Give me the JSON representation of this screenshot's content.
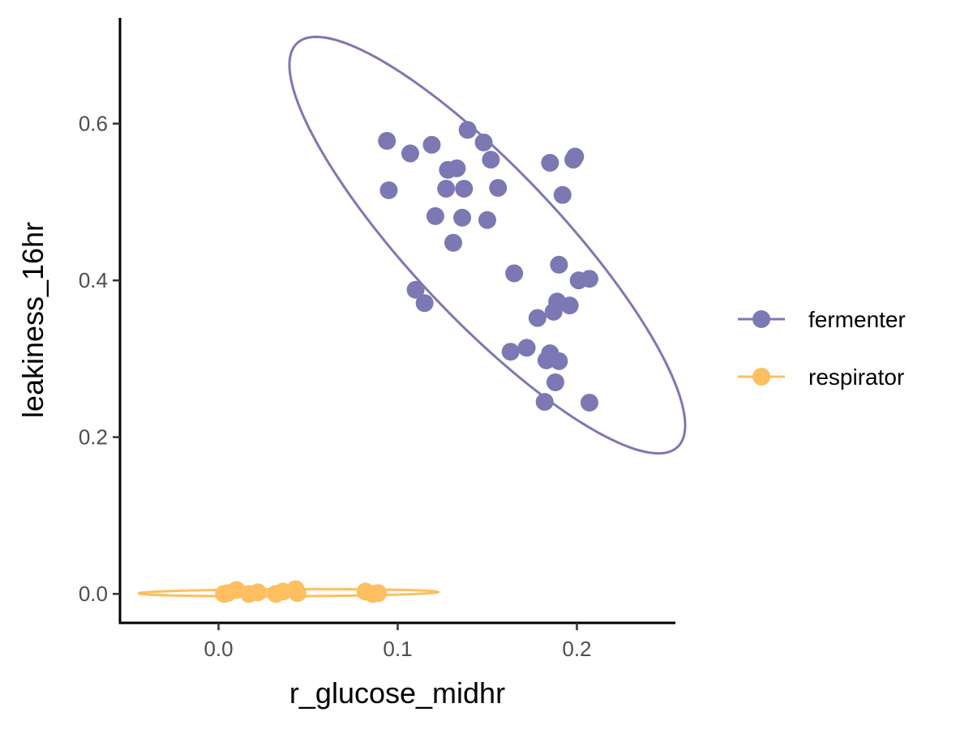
{
  "chart_data": {
    "type": "scatter",
    "xlabel": "r_glucose_midhr",
    "ylabel": "leakiness_16hr",
    "xlim": [
      -0.055,
      0.255
    ],
    "ylim": [
      -0.037,
      0.735
    ],
    "x_ticks": [
      0.0,
      0.1,
      0.2
    ],
    "x_tick_labels": [
      "0.0",
      "0.1",
      "0.2"
    ],
    "y_ticks": [
      0.0,
      0.2,
      0.4,
      0.6
    ],
    "y_tick_labels": [
      "0.0",
      "0.2",
      "0.4",
      "0.6"
    ],
    "grid": false,
    "legend_position": "right",
    "series": [
      {
        "name": "fermenter",
        "color": "#7b78b4",
        "x": [
          0.094,
          0.095,
          0.107,
          0.119,
          0.128,
          0.133,
          0.127,
          0.137,
          0.139,
          0.148,
          0.152,
          0.156,
          0.121,
          0.136,
          0.15,
          0.131,
          0.11,
          0.115,
          0.165,
          0.185,
          0.198,
          0.199,
          0.192,
          0.19,
          0.201,
          0.207,
          0.189,
          0.196,
          0.187,
          0.178,
          0.163,
          0.172,
          0.185,
          0.183,
          0.19,
          0.188,
          0.182,
          0.207
        ],
        "y": [
          0.578,
          0.515,
          0.562,
          0.573,
          0.541,
          0.543,
          0.517,
          0.517,
          0.592,
          0.576,
          0.554,
          0.518,
          0.482,
          0.48,
          0.477,
          0.448,
          0.388,
          0.371,
          0.409,
          0.55,
          0.554,
          0.558,
          0.509,
          0.42,
          0.4,
          0.402,
          0.373,
          0.368,
          0.36,
          0.352,
          0.309,
          0.314,
          0.307,
          0.298,
          0.297,
          0.27,
          0.245,
          0.244
        ]
      },
      {
        "name": "respirator",
        "color": "#fdbf5f",
        "x": [
          0.003,
          0.005,
          0.01,
          0.017,
          0.022,
          0.032,
          0.036,
          0.043,
          0.044,
          0.082,
          0.086,
          0.089
        ],
        "y": [
          0.0,
          0.001,
          0.005,
          0.0,
          0.002,
          0.0,
          0.003,
          0.006,
          0.001,
          0.003,
          0.0,
          0.001
        ]
      }
    ],
    "ellipses": [
      {
        "series": "fermenter",
        "color": "#7b78b4",
        "center": [
          0.15,
          0.445
        ],
        "a": 0.283,
        "b": 0.052,
        "angle_deg": -69.5
      },
      {
        "series": "respirator",
        "color": "#fdbf5f",
        "center": [
          0.039,
          0.0015
        ],
        "a": 0.0835,
        "b": 0.0045,
        "angle_deg": 0.6
      }
    ]
  }
}
